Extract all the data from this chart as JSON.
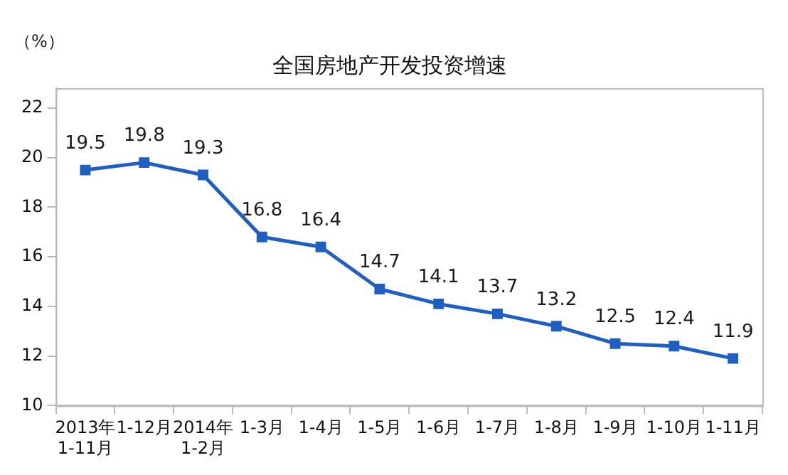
{
  "chart_data": {
    "type": "line",
    "title": "全国房地产开发投资增速",
    "ylabel": "（%）",
    "categories": [
      "2013年\n1-11月",
      "1-12月",
      "2014年\n1-2月",
      "1-3月",
      "1-4月",
      "1-5月",
      "1-6月",
      "1-7月",
      "1-8月",
      "1-9月",
      "1-10月",
      "1-11月"
    ],
    "series": [
      {
        "color": "#1f5fc4",
        "values": [
          19.5,
          19.8,
          19.3,
          16.8,
          16.4,
          14.7,
          14.1,
          13.7,
          13.2,
          12.5,
          12.4,
          11.9
        ]
      }
    ],
    "ylim": [
      10,
      22.8
    ],
    "yticks": [
      10,
      12,
      14,
      16,
      18,
      20,
      22
    ],
    "grid": false,
    "legend": false,
    "marker": "square",
    "line_style": "solid",
    "data_labels": true
  }
}
